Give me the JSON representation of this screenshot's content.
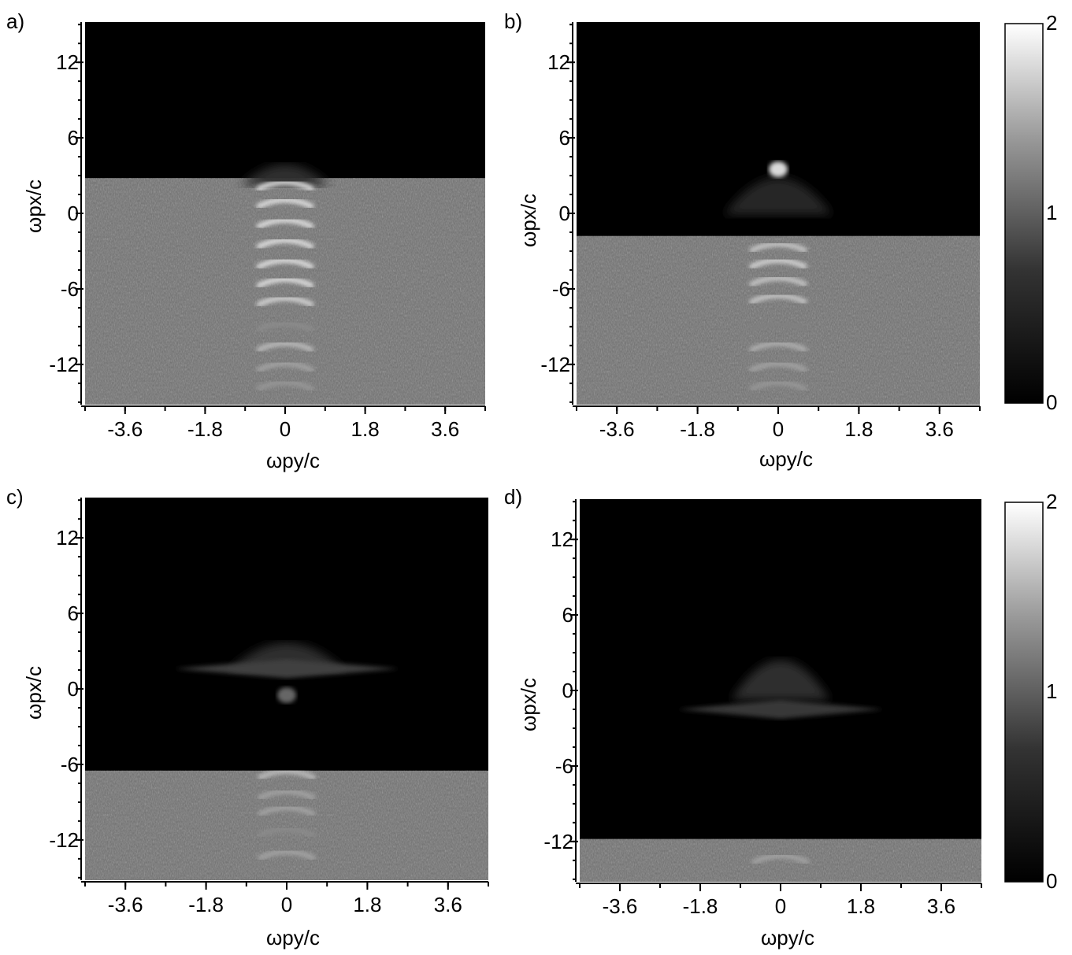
{
  "chart_data": [
    {
      "panel_label": "a)",
      "type": "heatmap",
      "xlabel": "ωpy/c",
      "ylabel": "ωpx/c",
      "x_ticks": [
        "-3.6",
        "-1.8",
        "0",
        "1.8",
        "3.6"
      ],
      "x_tick_values": [
        -3.6,
        -1.8,
        0,
        1.8,
        3.6
      ],
      "y_ticks": [
        "12",
        "6",
        "0",
        "-6",
        "-12"
      ],
      "y_tick_values": [
        12,
        6,
        0,
        -6,
        -12
      ],
      "xlim": [
        -4.5,
        4.5
      ],
      "ylim": [
        -15.2,
        15.2
      ],
      "front_x": 2.8,
      "features": [
        {
          "kind": "cap",
          "x_center": 3.4,
          "half_width_y": 1.0,
          "height": 2.4,
          "level": 0.35
        },
        {
          "kind": "arc",
          "x": 2.4,
          "level": 1.8
        },
        {
          "kind": "arc",
          "x": 1.0,
          "level": 1.8
        },
        {
          "kind": "arc",
          "x": -0.6,
          "level": 1.8
        },
        {
          "kind": "arc",
          "x": -2.2,
          "level": 1.8
        },
        {
          "kind": "arc",
          "x": -3.8,
          "level": 1.8
        },
        {
          "kind": "arc",
          "x": -5.3,
          "level": 1.8
        },
        {
          "kind": "arc",
          "x": -6.8,
          "level": 1.7
        },
        {
          "kind": "arc",
          "x": -8.8,
          "level": 1.1
        },
        {
          "kind": "arc",
          "x": -10.4,
          "level": 1.5
        },
        {
          "kind": "arc",
          "x": -12.0,
          "level": 1.3
        },
        {
          "kind": "arc",
          "x": -13.5,
          "level": 1.2
        }
      ]
    },
    {
      "panel_label": "b)",
      "type": "heatmap",
      "xlabel": "ωpy/c",
      "ylabel": "ωpx/c",
      "x_ticks": [
        "-3.6",
        "-1.8",
        "0",
        "1.8",
        "3.6"
      ],
      "x_tick_values": [
        -3.6,
        -1.8,
        0,
        1.8,
        3.6
      ],
      "y_ticks": [
        "12",
        "6",
        "0",
        "-6",
        "-12"
      ],
      "y_tick_values": [
        12,
        6,
        0,
        -6,
        -12
      ],
      "xlim": [
        -4.5,
        4.5
      ],
      "ylim": [
        -15.2,
        15.2
      ],
      "front_x": -1.8,
      "features": [
        {
          "kind": "cap",
          "x_center": 2.0,
          "half_width_y": 1.2,
          "height": 4.2,
          "level": 0.3
        },
        {
          "kind": "spot",
          "x": 3.5,
          "level": 1.7
        },
        {
          "kind": "arc",
          "x": -2.5,
          "level": 1.6
        },
        {
          "kind": "arc",
          "x": -3.8,
          "level": 1.7
        },
        {
          "kind": "arc",
          "x": -5.2,
          "level": 1.6
        },
        {
          "kind": "arc",
          "x": -6.6,
          "level": 1.6
        },
        {
          "kind": "arc",
          "x": -8.8,
          "level": 1.0
        },
        {
          "kind": "arc",
          "x": -10.4,
          "level": 1.4
        },
        {
          "kind": "arc",
          "x": -12.0,
          "level": 1.3
        },
        {
          "kind": "arc",
          "x": -13.5,
          "level": 1.2
        }
      ]
    },
    {
      "panel_label": "c)",
      "type": "heatmap",
      "xlabel": "ωpy/c",
      "ylabel": "ωpx/c",
      "x_ticks": [
        "-3.6",
        "-1.8",
        "0",
        "1.8",
        "3.6"
      ],
      "x_tick_values": [
        -3.6,
        -1.8,
        0,
        1.8,
        3.6
      ],
      "y_ticks": [
        "12",
        "6",
        "0",
        "-6",
        "-12"
      ],
      "y_tick_values": [
        12,
        6,
        0,
        -6,
        -12
      ],
      "xlim": [
        -4.5,
        4.5
      ],
      "ylim": [
        -15.2,
        15.2
      ],
      "front_x": -6.5,
      "features": [
        {
          "kind": "cap",
          "x_center": 3.0,
          "half_width_y": 1.3,
          "height": 3.2,
          "level": 0.35
        },
        {
          "kind": "streak",
          "x": 1.6,
          "half_width_y": 2.5,
          "level": 0.5
        },
        {
          "kind": "spot",
          "x": -0.5,
          "level": 0.8
        },
        {
          "kind": "arc",
          "x": -6.6,
          "level": 1.5
        },
        {
          "kind": "arc",
          "x": -8.2,
          "level": 1.3
        },
        {
          "kind": "arc",
          "x": -9.5,
          "level": 1.3
        },
        {
          "kind": "arc",
          "x": -11.2,
          "level": 1.1
        },
        {
          "kind": "arc",
          "x": -13.0,
          "level": 1.3
        }
      ]
    },
    {
      "panel_label": "d)",
      "type": "heatmap",
      "xlabel": "ωpy/c",
      "ylabel": "ωpx/c",
      "x_ticks": [
        "-3.6",
        "-1.8",
        "0",
        "1.8",
        "3.6"
      ],
      "x_tick_values": [
        -3.6,
        -1.8,
        0,
        1.8,
        3.6
      ],
      "y_ticks": [
        "12",
        "6",
        "0",
        "-6",
        "-12"
      ],
      "y_tick_values": [
        12,
        6,
        0,
        -6,
        -12
      ],
      "xlim": [
        -4.5,
        4.5
      ],
      "ylim": [
        -15.2,
        15.2
      ],
      "front_x": -11.8,
      "features": [
        {
          "kind": "cap",
          "x_center": 1.5,
          "half_width_y": 1.1,
          "height": 4.5,
          "level": 0.35
        },
        {
          "kind": "streak",
          "x": -1.5,
          "half_width_y": 2.3,
          "level": 0.45
        },
        {
          "kind": "arc",
          "x": -13.2,
          "level": 1.3
        }
      ]
    }
  ],
  "colorbar": {
    "min_label": "0",
    "mid_label": "1",
    "max_label": "2",
    "min": 0,
    "max": 2,
    "colormap": "gray"
  },
  "colors": {
    "background": "#ffffff",
    "plot_empty": "#000000",
    "plasma_gray": "#6f6f6f",
    "axis": "#000000"
  }
}
